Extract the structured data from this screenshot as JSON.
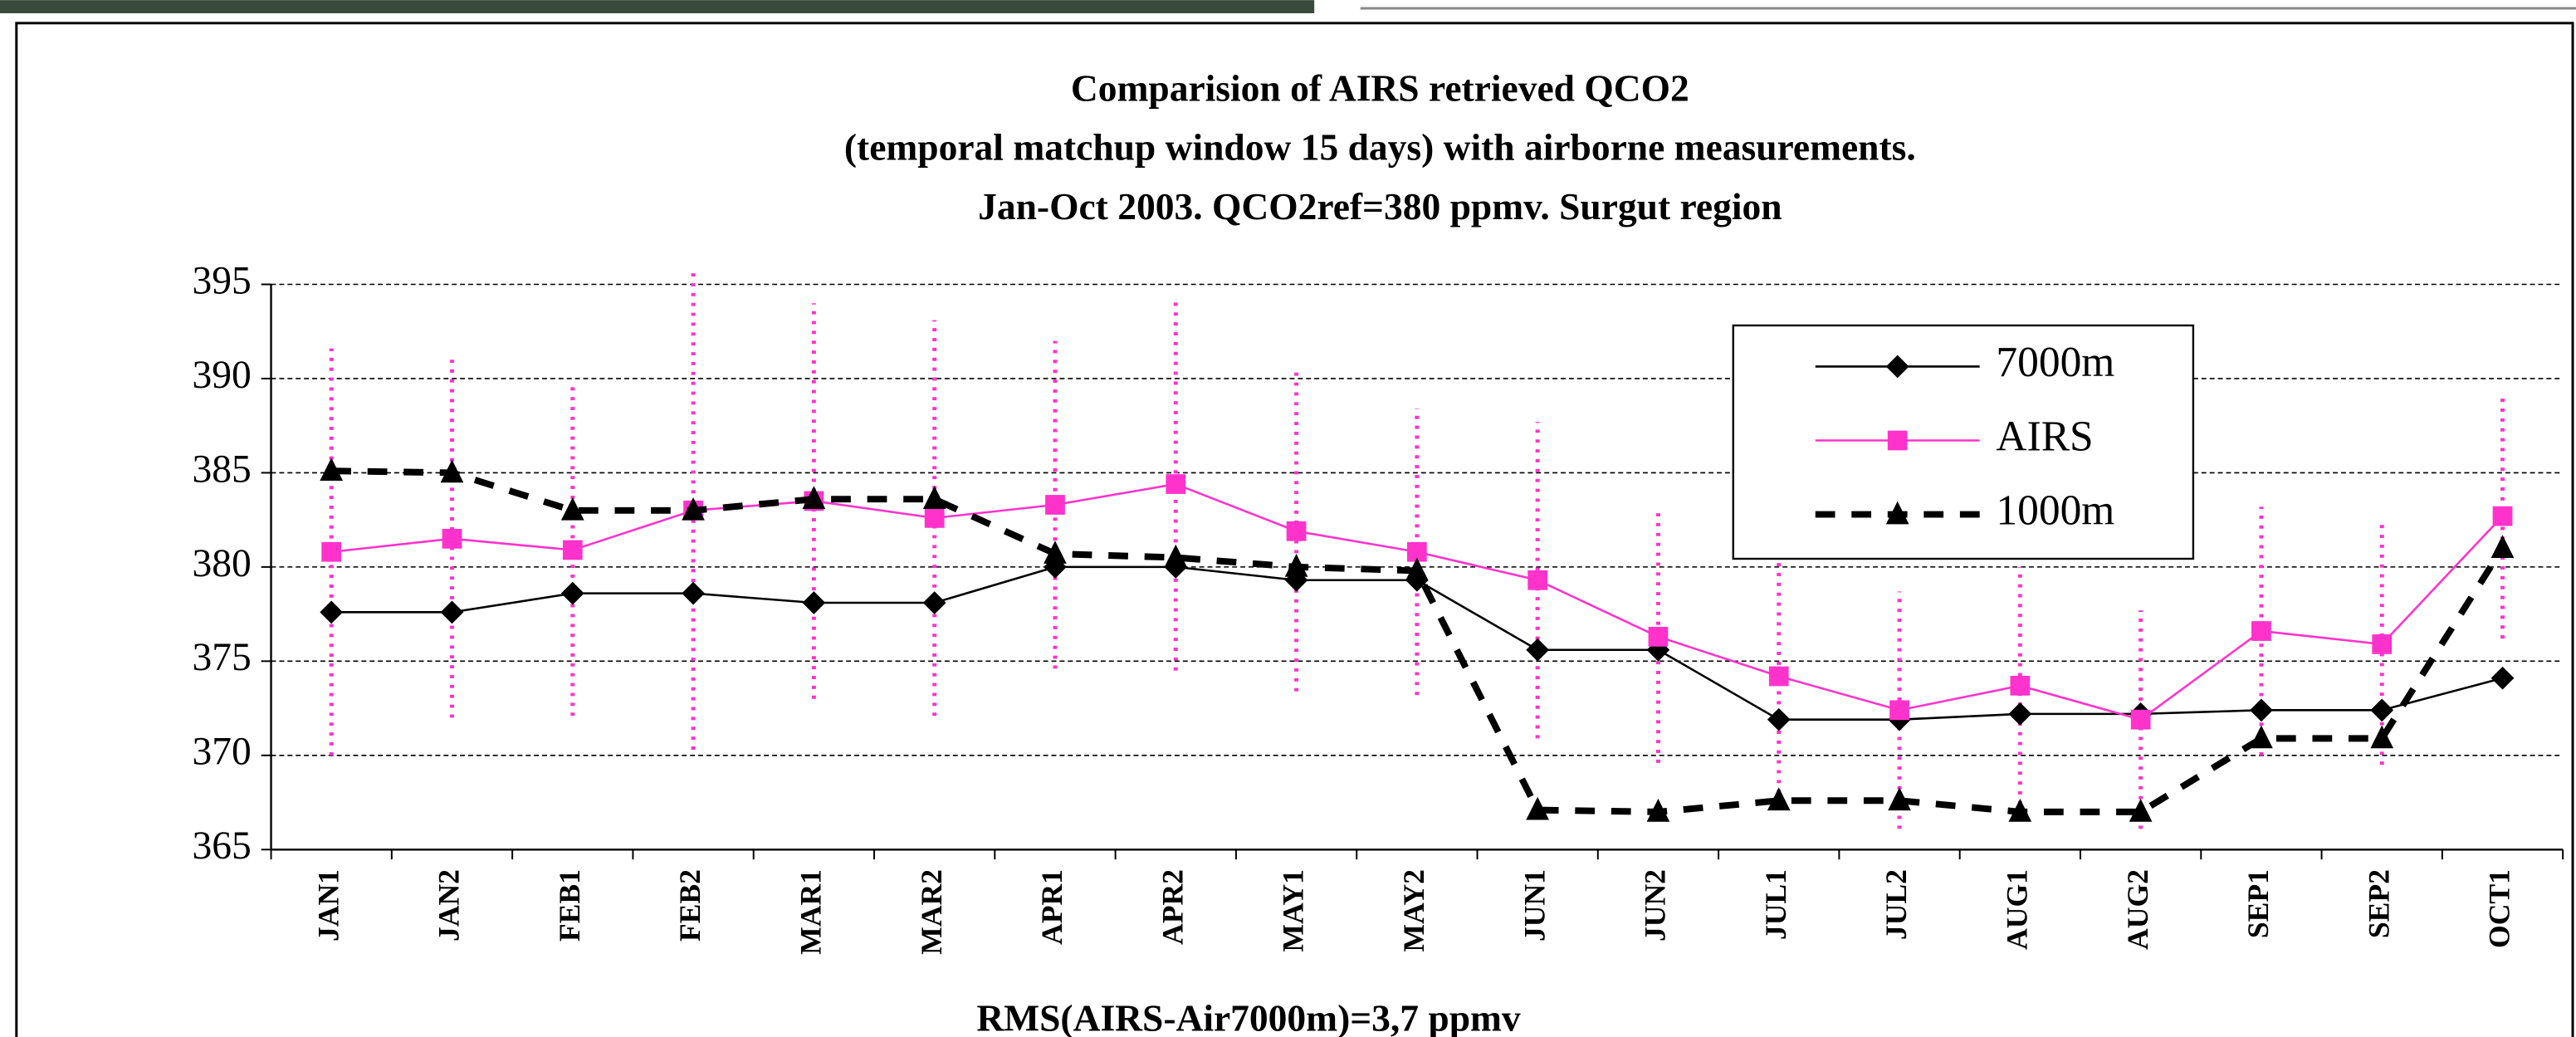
{
  "chart_data": {
    "type": "line",
    "title": [
      "Comparision of AIRS retrieved QCO2",
      "(temporal matchup window 15 days) with airborne measurements.",
      "Jan-Oct 2003. QCO2ref=380 ppmv. Surgut region"
    ],
    "footnote": "RMS(AIRS-Air7000m)=3,7 ppmv",
    "categories": [
      "JAN1",
      "JAN2",
      "FEB1",
      "FEB2",
      "MAR1",
      "MAR2",
      "APR1",
      "APR2",
      "MAY1",
      "MAY2",
      "JUN1",
      "JUN2",
      "JUL1",
      "JUL2",
      "AUG1",
      "AUG2",
      "SEP1",
      "SEP2",
      "OCT1"
    ],
    "series": [
      {
        "name": "7000m",
        "color": "#000000",
        "marker": "diamond",
        "dash": false,
        "values": [
          377.6,
          377.6,
          378.6,
          378.6,
          378.1,
          378.1,
          380,
          380,
          379.3,
          379.3,
          375.6,
          375.6,
          371.9,
          371.9,
          372.2,
          372.2,
          372.4,
          372.4,
          374.1
        ]
      },
      {
        "name": "AIRS",
        "color": "#ff33cc",
        "marker": "square",
        "dash": false,
        "values": [
          380.8,
          381.5,
          380.9,
          383,
          383.5,
          382.6,
          383.3,
          384.4,
          381.9,
          380.8,
          379.3,
          376.3,
          374.2,
          372.4,
          373.7,
          371.9,
          376.6,
          375.9,
          382.7
        ],
        "errors": [
          10.8,
          9.5,
          8.8,
          12.7,
          10.5,
          10.5,
          8.7,
          9.9,
          8.5,
          7.6,
          8.4,
          6.7,
          6.2,
          6.3,
          6.3,
          5.8,
          6.6,
          6.4,
          6.5
        ]
      },
      {
        "name": "1000m",
        "color": "#000000",
        "marker": "triangle",
        "dash": true,
        "values": [
          385.1,
          385,
          383,
          383,
          383.6,
          383.6,
          380.7,
          380.5,
          380,
          379.8,
          367.1,
          367,
          367.6,
          367.6,
          367,
          367,
          370.9,
          370.9,
          381
        ]
      }
    ],
    "ylim": [
      365,
      395
    ],
    "yticks": [
      365,
      370,
      375,
      380,
      385,
      390,
      395
    ],
    "grid": true,
    "legend": "upper right"
  }
}
